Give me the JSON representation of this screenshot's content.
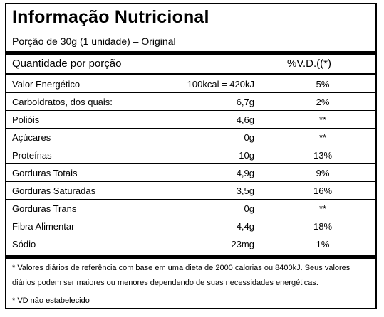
{
  "title": "Informação Nutricional",
  "portion": "Porção de 30g (1 unidade) – Original",
  "header": {
    "quantity": "Quantidade por porção",
    "dv": "%V.D.((*)"
  },
  "rows": [
    {
      "name": "Valor Energético",
      "amount": "100kcal = 420kJ",
      "dv": "5%"
    },
    {
      "name": "Carboidratos, dos quais:",
      "amount": "6,7g",
      "dv": "2%"
    },
    {
      "name": "Polióis",
      "amount": "4,6g",
      "dv": "**"
    },
    {
      "name": "Açúcares",
      "amount": "0g",
      "dv": "**"
    },
    {
      "name": "Proteínas",
      "amount": "10g",
      "dv": "13%"
    },
    {
      "name": "Gorduras Totais",
      "amount": "4,9g",
      "dv": "9%"
    },
    {
      "name": "Gorduras Saturadas",
      "amount": "3,5g",
      "dv": "16%"
    },
    {
      "name": "Gorduras Trans",
      "amount": "0g",
      "dv": "**"
    },
    {
      "name": "Fibra Alimentar",
      "amount": "4,4g",
      "dv": "18%"
    },
    {
      "name": "Sódio",
      "amount": "23mg",
      "dv": "1%"
    }
  ],
  "footnote1": "* Valores diários de referência com base em uma dieta de 2000 calorias ou 8400kJ. Seus valores diários podem ser maiores ou menores dependendo de suas necessidades energéticas.",
  "footnote2": "* VD não estabelecido"
}
